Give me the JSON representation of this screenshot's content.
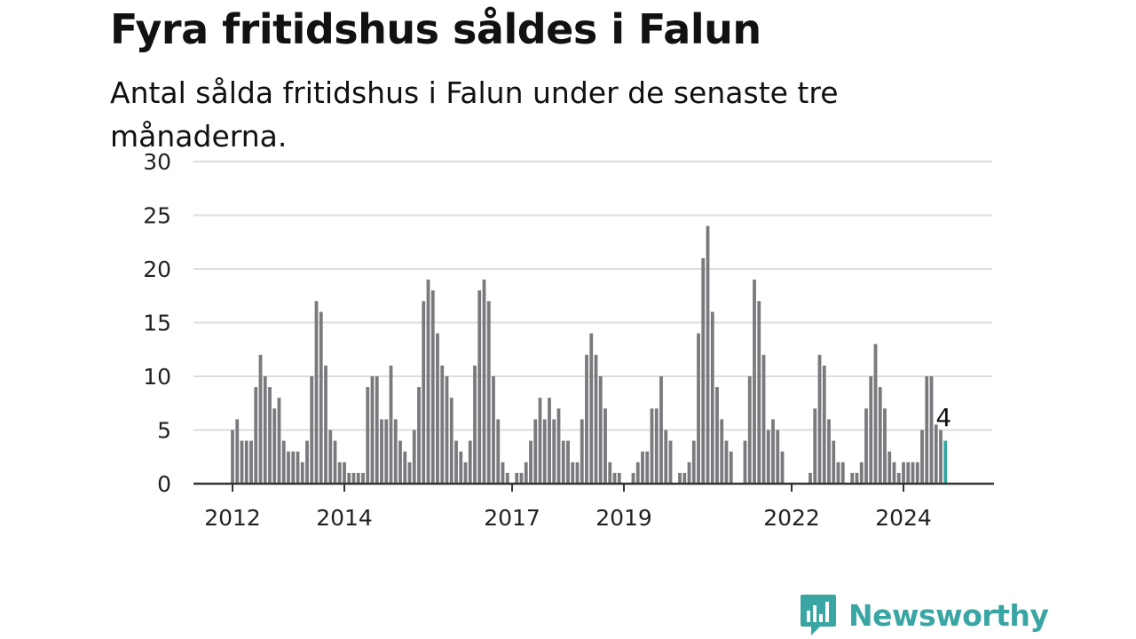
{
  "title": "Fyra fritidshus såldes i Falun",
  "subtitle": "Antal sålda fritidshus i Falun under de senaste tre månaderna.",
  "brand": {
    "name": "Newsworthy"
  },
  "colors": {
    "bar": "#7a797d",
    "highlight": "#2fa8a0",
    "grid": "#dddddd",
    "axis": "#333333",
    "brand": "#3aa6a3"
  },
  "chart_data": {
    "type": "bar",
    "ylim": [
      0,
      30
    ],
    "yticks": [
      0,
      5,
      10,
      15,
      20,
      25,
      30
    ],
    "xticks": [
      "2012",
      "2014",
      "2017",
      "2019",
      "2022",
      "2024"
    ],
    "grid": true,
    "start": "2012-01",
    "values": [
      5,
      6,
      4,
      4,
      4,
      9,
      12,
      10,
      9,
      7,
      8,
      4,
      3,
      3,
      3,
      2,
      4,
      10,
      17,
      16,
      11,
      5,
      4,
      2,
      2,
      1,
      1,
      1,
      1,
      9,
      10,
      10,
      6,
      6,
      11,
      6,
      4,
      3,
      2,
      5,
      9,
      17,
      19,
      18,
      14,
      11,
      10,
      8,
      4,
      3,
      2,
      4,
      11,
      18,
      19,
      17,
      10,
      6,
      2,
      1,
      0,
      1,
      1,
      2,
      4,
      6,
      8,
      6,
      8,
      6,
      7,
      4,
      4,
      2,
      2,
      6,
      12,
      14,
      12,
      10,
      7,
      2,
      1,
      1,
      0,
      0,
      1,
      2,
      3,
      3,
      7,
      7,
      10,
      5,
      4,
      0,
      1,
      1,
      2,
      4,
      14,
      21,
      24,
      16,
      9,
      6,
      4,
      3,
      0,
      0,
      4,
      10,
      19,
      17,
      12,
      5,
      6,
      5,
      3,
      0,
      0,
      0,
      0,
      0,
      1,
      7,
      12,
      11,
      6,
      4,
      2,
      2,
      0,
      1,
      1,
      2,
      7,
      10,
      13,
      9,
      7,
      3,
      2,
      1,
      2,
      2,
      2,
      2,
      5,
      10,
      10,
      5.5,
      5,
      4
    ],
    "last_value_label": "4"
  }
}
